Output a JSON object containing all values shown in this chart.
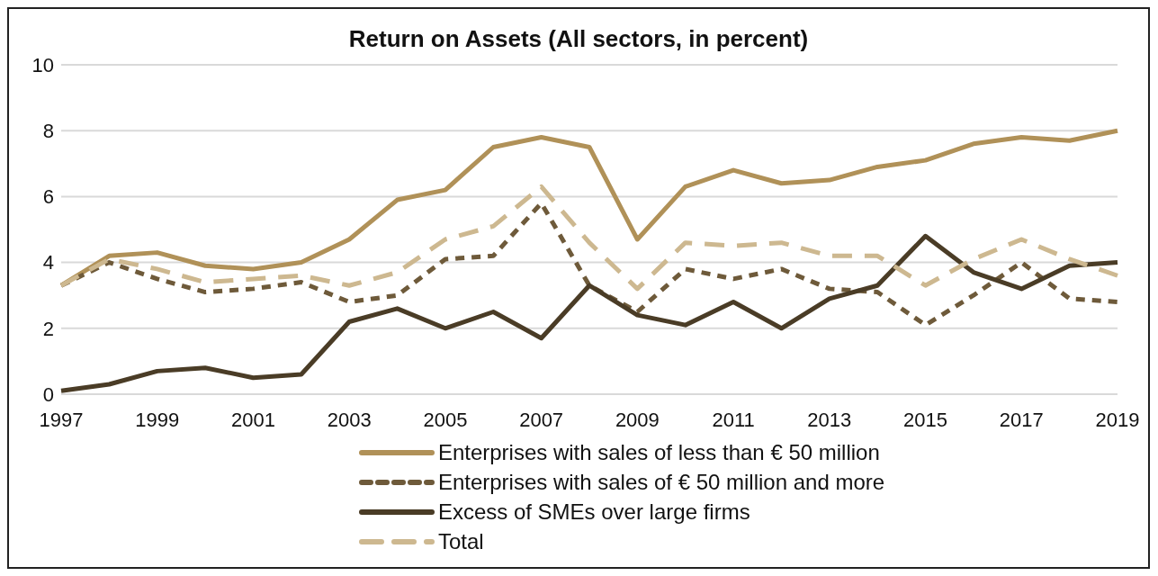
{
  "chart_data": {
    "type": "line",
    "title": "Return on Assets (All sectors, in percent)",
    "categories": [
      "1997",
      null,
      "1999",
      null,
      "2001",
      null,
      "2003",
      null,
      "2005",
      null,
      "2007",
      null,
      "2009",
      null,
      "2011",
      null,
      "2013",
      null,
      "2015",
      null,
      "2017",
      null,
      "2019"
    ],
    "series": [
      {
        "name": "Enterprises with sales of less than € 50 million",
        "color": "#b09158",
        "line_style": "solid",
        "values": [
          3.3,
          4.2,
          4.3,
          3.9,
          3.8,
          4.0,
          4.7,
          5.9,
          6.2,
          7.5,
          7.8,
          7.5,
          4.7,
          6.3,
          6.8,
          6.4,
          6.5,
          6.9,
          7.1,
          7.6,
          7.8,
          7.7,
          8.0
        ]
      },
      {
        "name": "Enterprises with sales of € 50 million and more",
        "color": "#6e5a3a",
        "line_style": "dashed",
        "values": [
          3.3,
          4.0,
          3.5,
          3.1,
          3.2,
          3.4,
          2.8,
          3.0,
          4.1,
          4.2,
          5.8,
          3.3,
          2.5,
          3.8,
          3.5,
          3.8,
          3.2,
          3.1,
          2.1,
          3.0,
          4.0,
          2.9,
          2.8
        ]
      },
      {
        "name": "Excess of SMEs over large firms",
        "color": "#4a3c26",
        "line_style": "solid",
        "values": [
          0.1,
          0.3,
          0.7,
          0.8,
          0.5,
          0.6,
          2.2,
          2.6,
          2.0,
          2.5,
          1.7,
          3.3,
          2.4,
          2.1,
          2.8,
          2.0,
          2.9,
          3.3,
          4.8,
          3.7,
          3.2,
          3.9,
          4.0
        ]
      },
      {
        "name": "Total",
        "color": "#cdb890",
        "line_style": "dashed",
        "values": [
          3.3,
          4.1,
          3.8,
          3.4,
          3.5,
          3.6,
          3.3,
          3.7,
          4.7,
          5.1,
          6.3,
          4.6,
          3.2,
          4.6,
          4.5,
          4.6,
          4.2,
          4.2,
          3.3,
          4.1,
          4.7,
          4.1,
          3.6
        ]
      }
    ],
    "ylim": [
      0,
      10
    ],
    "yticks": [
      0,
      2,
      4,
      6,
      8,
      10
    ],
    "grid": "y",
    "legend": "bottom",
    "marker": "none"
  }
}
